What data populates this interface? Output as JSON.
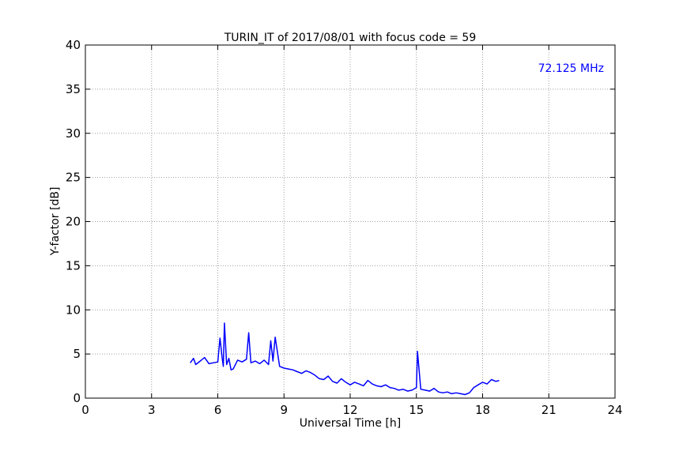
{
  "chart_data": {
    "type": "line",
    "title": "TURIN_IT of 2017/08/01 with focus code = 59",
    "xlabel": "Universal Time [h]",
    "ylabel": "Y-factor [dB]",
    "xlim": [
      0,
      24
    ],
    "ylim": [
      0,
      40
    ],
    "xticks": [
      0,
      3,
      6,
      9,
      12,
      15,
      18,
      21,
      24
    ],
    "yticks": [
      0,
      5,
      10,
      15,
      20,
      25,
      30,
      35,
      40
    ],
    "grid": true,
    "annotation": {
      "text": "72.125 MHz",
      "position": "top-right",
      "color": "#0000ff"
    },
    "series": [
      {
        "color": "#0000ff",
        "x": [
          4.75,
          4.9,
          5.0,
          5.2,
          5.4,
          5.6,
          5.8,
          6.0,
          6.1,
          6.2,
          6.25,
          6.3,
          6.4,
          6.5,
          6.6,
          6.7,
          6.9,
          7.1,
          7.3,
          7.4,
          7.5,
          7.7,
          7.9,
          8.1,
          8.3,
          8.4,
          8.5,
          8.6,
          8.8,
          9.0,
          9.2,
          9.4,
          9.6,
          9.8,
          10.0,
          10.2,
          10.4,
          10.6,
          10.8,
          11.0,
          11.2,
          11.4,
          11.6,
          11.8,
          12.0,
          12.2,
          12.4,
          12.6,
          12.8,
          13.0,
          13.2,
          13.4,
          13.6,
          13.8,
          14.0,
          14.2,
          14.4,
          14.6,
          14.8,
          15.0,
          15.05,
          15.2,
          15.4,
          15.6,
          15.8,
          16.0,
          16.2,
          16.4,
          16.6,
          16.8,
          17.0,
          17.2,
          17.4,
          17.6,
          17.8,
          18.0,
          18.2,
          18.4,
          18.6,
          18.75
        ],
        "y": [
          4.0,
          4.5,
          3.8,
          4.2,
          4.6,
          3.9,
          4.0,
          4.1,
          6.8,
          4.5,
          3.6,
          8.5,
          3.8,
          4.5,
          3.2,
          3.3,
          4.3,
          4.1,
          4.4,
          7.4,
          4.0,
          4.2,
          3.9,
          4.3,
          3.8,
          6.5,
          4.2,
          6.9,
          3.6,
          3.4,
          3.3,
          3.2,
          3.0,
          2.8,
          3.1,
          2.9,
          2.6,
          2.2,
          2.1,
          2.5,
          1.9,
          1.7,
          2.2,
          1.8,
          1.5,
          1.8,
          1.6,
          1.4,
          2.0,
          1.6,
          1.4,
          1.3,
          1.5,
          1.2,
          1.1,
          0.9,
          1.0,
          0.8,
          0.9,
          1.2,
          5.3,
          1.0,
          0.9,
          0.8,
          1.1,
          0.7,
          0.6,
          0.7,
          0.5,
          0.6,
          0.5,
          0.4,
          0.6,
          1.2,
          1.5,
          1.8,
          1.6,
          2.1,
          1.9,
          2.0
        ]
      }
    ]
  }
}
